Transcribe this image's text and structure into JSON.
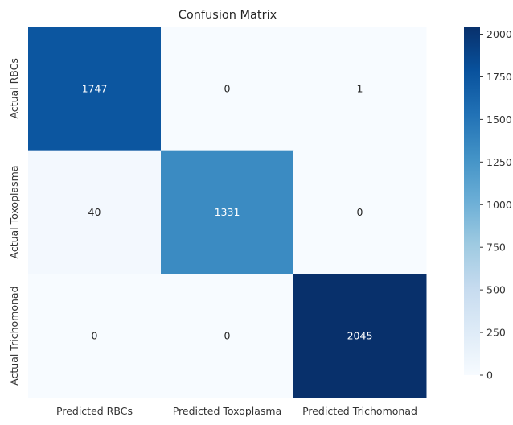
{
  "chart_data": {
    "type": "heatmap",
    "title": "Confusion Matrix",
    "x_labels": [
      "Predicted RBCs",
      "Predicted Toxoplasma",
      "Predicted Trichomonad"
    ],
    "y_labels": [
      "Actual RBCs",
      "Actual Toxoplasma",
      "Actual Trichomonad"
    ],
    "values": [
      [
        1747,
        0,
        1
      ],
      [
        40,
        1331,
        0
      ],
      [
        0,
        0,
        2045
      ]
    ],
    "colormap": "Blues",
    "vmin": 0,
    "vmax": 2045,
    "colorbar_ticks": [
      0,
      250,
      500,
      750,
      1000,
      1250,
      1500,
      1750,
      2000
    ],
    "colors": {
      "low": "#f7fbff",
      "high": "#08306b",
      "text_light": "#ffffff",
      "text_dark": "#262626",
      "tick": "#333333"
    }
  }
}
